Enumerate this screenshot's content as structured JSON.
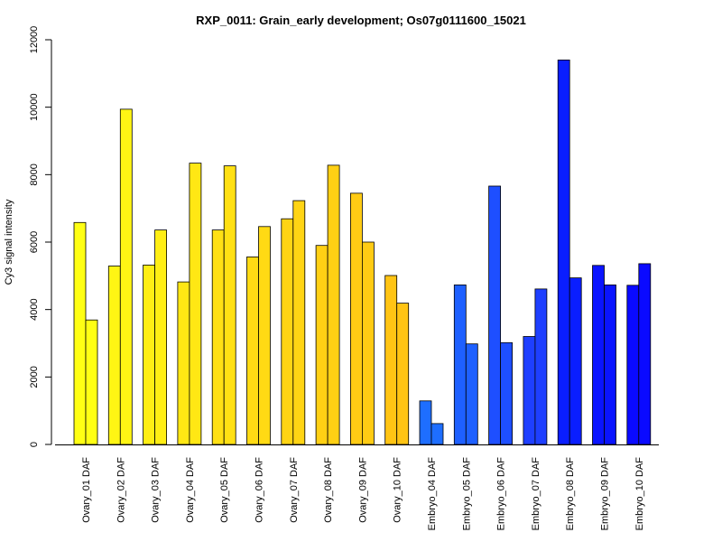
{
  "chart_data": {
    "type": "bar",
    "title": "RXP_0011: Grain_early development; Os07g0111600_15021",
    "xlabel": "",
    "ylabel": "Cy3 signal intensity",
    "ylim": [
      0,
      12000
    ],
    "yticks": [
      0,
      2000,
      4000,
      6000,
      8000,
      10000,
      12000
    ],
    "grid": false,
    "categories": [
      "Ovary_01 DAF",
      "Ovary_02 DAF",
      "Ovary_03 DAF",
      "Ovary_04 DAF",
      "Ovary_05 DAF",
      "Ovary_06 DAF",
      "Ovary_07 DAF",
      "Ovary_08 DAF",
      "Ovary_09 DAF",
      "Ovary_10 DAF",
      "Embryo_04 DAF",
      "Embryo_05 DAF",
      "Embryo_06 DAF",
      "Embryo_07 DAF",
      "Embryo_08 DAF",
      "Embryo_09 DAF",
      "Embryo_10 DAF"
    ],
    "series": [
      {
        "values": [
          6580,
          5290,
          5320,
          4820,
          6360,
          5560,
          6690,
          5900,
          7450,
          5010,
          1290,
          4730,
          7660,
          3200,
          11400,
          5310,
          4720
        ]
      },
      {
        "values": [
          3690,
          9940,
          6360,
          8340,
          8260,
          6460,
          7230,
          8280,
          6000,
          4190,
          620,
          2980,
          3020,
          4610,
          4940,
          4730,
          5360
        ]
      }
    ],
    "bar_colors": [
      "#FFFF14",
      "#FFF514",
      "#FFEE14",
      "#FFE714",
      "#FFE014",
      "#FFDA14",
      "#FFD414",
      "#FFD014",
      "#FFCB14",
      "#FFC414",
      "#1E6EFF",
      "#1E60FF",
      "#1E4FFF",
      "#1E3FFF",
      "#0A1EFF",
      "#0A14FF",
      "#0A0AFF"
    ]
  }
}
